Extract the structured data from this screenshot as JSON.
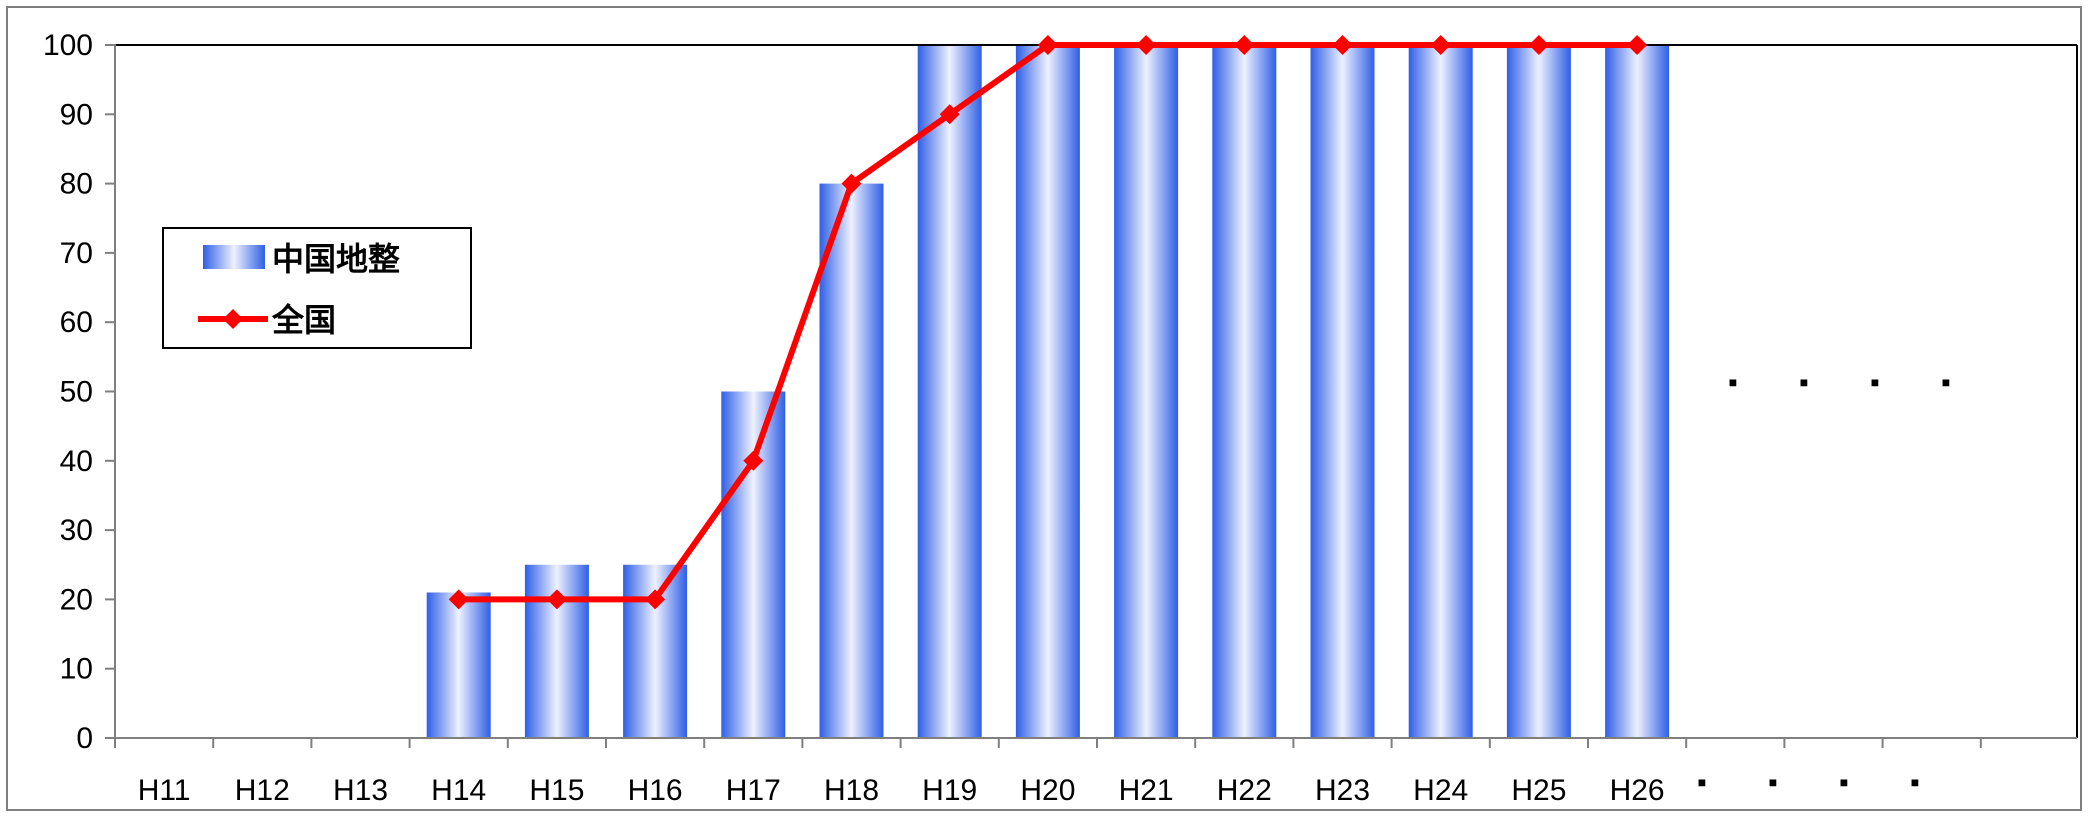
{
  "chart_data": {
    "type": "bar",
    "categories": [
      "H11",
      "H12",
      "H13",
      "H14",
      "H15",
      "H16",
      "H17",
      "H18",
      "H19",
      "H20",
      "H21",
      "H22",
      "H23",
      "H24",
      "H25",
      "H26"
    ],
    "extra_category_labels": [
      "■",
      "■",
      "■",
      "■"
    ],
    "continuation_markers": [
      "■",
      "■",
      "■",
      "■"
    ],
    "ylim": [
      0,
      100
    ],
    "yticks": [
      0,
      10,
      20,
      30,
      40,
      50,
      60,
      70,
      80,
      90,
      100
    ],
    "grid": false,
    "legend_position": "left",
    "series": [
      {
        "name": "中国地整",
        "type": "bar",
        "color": "#3366ee",
        "values": [
          null,
          null,
          null,
          21,
          25,
          25,
          50,
          80,
          100,
          100,
          100,
          100,
          100,
          100,
          100,
          100
        ]
      },
      {
        "name": "全国",
        "type": "line",
        "color": "#ff0000",
        "marker": "diamond",
        "values": [
          null,
          null,
          null,
          20,
          20,
          20,
          40,
          80,
          90,
          100,
          100,
          100,
          100,
          100,
          100,
          100
        ]
      }
    ]
  }
}
